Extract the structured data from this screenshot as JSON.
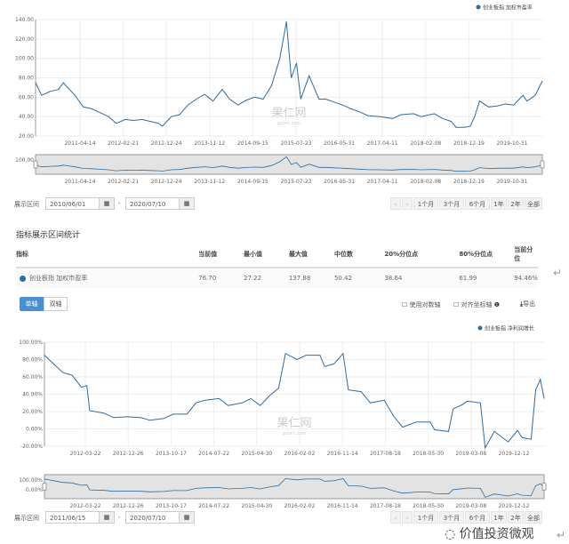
{
  "colors": {
    "line": "#2e6b9e",
    "nav_bg": "#e3e3e3",
    "accent": "#4a8fd0"
  },
  "chart_data": [
    {
      "type": "line",
      "legend": "创业板指 加权市盈率",
      "legend_placement": "top-right",
      "grid": true,
      "ylim": [
        20,
        140
      ],
      "yticks": [
        "20.00",
        "40.00",
        "60.00",
        "80.00",
        "100.00",
        "120.00",
        "140.00"
      ],
      "xlim": [
        "2010-06-01",
        "2020-07-10"
      ],
      "xticks": [
        "2011-04-14",
        "2012-02-21",
        "2012-12-24",
        "2013-11-12",
        "2014-09-15",
        "2015-07-23",
        "2016-05-31",
        "2017-04-11",
        "2018-02-08",
        "2018-12-19",
        "2019-10-31"
      ],
      "navigator_ytick": "100.00",
      "watermark": "果仁网",
      "watermark_sub": "guorn.com",
      "points": [
        [
          "2010-06-01",
          75
        ],
        [
          "2010-07-15",
          62
        ],
        [
          "2010-09-15",
          66
        ],
        [
          "2010-11-15",
          68
        ],
        [
          "2010-12-20",
          75
        ],
        [
          "2011-01-20",
          70
        ],
        [
          "2011-03-15",
          62
        ],
        [
          "2011-05-15",
          50
        ],
        [
          "2011-07-15",
          48
        ],
        [
          "2011-09-15",
          44
        ],
        [
          "2011-11-15",
          40
        ],
        [
          "2012-01-10",
          33
        ],
        [
          "2012-03-15",
          37
        ],
        [
          "2012-05-15",
          36
        ],
        [
          "2012-07-15",
          37
        ],
        [
          "2012-09-15",
          35
        ],
        [
          "2012-11-15",
          33
        ],
        [
          "2012-12-10",
          30
        ],
        [
          "2013-02-15",
          40
        ],
        [
          "2013-04-15",
          42
        ],
        [
          "2013-06-15",
          52
        ],
        [
          "2013-08-15",
          58
        ],
        [
          "2013-10-15",
          63
        ],
        [
          "2013-12-15",
          56
        ],
        [
          "2014-02-20",
          68
        ],
        [
          "2014-04-15",
          58
        ],
        [
          "2014-06-15",
          52
        ],
        [
          "2014-08-15",
          57
        ],
        [
          "2014-10-15",
          60
        ],
        [
          "2014-12-15",
          58
        ],
        [
          "2015-02-15",
          72
        ],
        [
          "2015-04-15",
          100
        ],
        [
          "2015-06-03",
          137.88
        ],
        [
          "2015-07-08",
          80
        ],
        [
          "2015-08-15",
          95
        ],
        [
          "2015-09-15",
          58
        ],
        [
          "2015-11-15",
          82
        ],
        [
          "2016-01-25",
          58
        ],
        [
          "2016-03-15",
          58
        ],
        [
          "2016-05-15",
          55
        ],
        [
          "2016-07-15",
          52
        ],
        [
          "2016-09-15",
          48
        ],
        [
          "2016-11-15",
          45
        ],
        [
          "2017-01-15",
          41
        ],
        [
          "2017-04-15",
          40
        ],
        [
          "2017-07-15",
          38
        ],
        [
          "2017-09-15",
          42
        ],
        [
          "2017-12-15",
          43
        ],
        [
          "2018-02-08",
          40
        ],
        [
          "2018-05-15",
          43
        ],
        [
          "2018-07-15",
          38
        ],
        [
          "2018-09-15",
          35
        ],
        [
          "2018-10-20",
          29
        ],
        [
          "2018-12-20",
          29
        ],
        [
          "2019-02-01",
          30
        ],
        [
          "2019-03-05",
          40
        ],
        [
          "2019-04-10",
          56
        ],
        [
          "2019-06-15",
          50
        ],
        [
          "2019-08-15",
          51
        ],
        [
          "2019-10-15",
          53
        ],
        [
          "2019-12-15",
          52
        ],
        [
          "2020-02-20",
          62
        ],
        [
          "2020-03-20",
          56
        ],
        [
          "2020-05-20",
          62
        ],
        [
          "2020-07-10",
          76.7
        ]
      ]
    },
    {
      "type": "line",
      "legend": "创业板指 净利润增长",
      "legend_placement": "top-right",
      "grid": true,
      "ylim": [
        -20,
        100
      ],
      "yticks": [
        "-20.00%",
        "0.00%",
        "20.00%",
        "40.00%",
        "60.00%",
        "80.00%",
        "100.00%"
      ],
      "xlim": [
        "2011-06-15",
        "2020-07-10"
      ],
      "xticks": [
        "2012-03-22",
        "2012-12-26",
        "2013-10-17",
        "2014-07-22",
        "2015-04-30",
        "2016-02-02",
        "2016-11-14",
        "2017-08-18",
        "2018-05-30",
        "2019-03-08",
        "2019-12-12"
      ],
      "navigator_yticks": [
        "100.00%",
        "0.00%"
      ],
      "watermark": "果仁网",
      "watermark_sub": "guorn.com",
      "points": [
        [
          "2011-06-15",
          85
        ],
        [
          "2011-08-15",
          75
        ],
        [
          "2011-10-15",
          65
        ],
        [
          "2011-12-15",
          62
        ],
        [
          "2012-02-15",
          48
        ],
        [
          "2012-03-22",
          50
        ],
        [
          "2012-04-10",
          21
        ],
        [
          "2012-07-15",
          18
        ],
        [
          "2012-09-15",
          13
        ],
        [
          "2012-12-15",
          14
        ],
        [
          "2013-03-15",
          13
        ],
        [
          "2013-05-15",
          10
        ],
        [
          "2013-08-15",
          12
        ],
        [
          "2013-10-15",
          17
        ],
        [
          "2014-01-15",
          17
        ],
        [
          "2014-03-15",
          30
        ],
        [
          "2014-05-15",
          33
        ],
        [
          "2014-08-15",
          35
        ],
        [
          "2014-10-15",
          27
        ],
        [
          "2015-01-15",
          30
        ],
        [
          "2015-03-15",
          35
        ],
        [
          "2015-05-15",
          27
        ],
        [
          "2015-07-15",
          38
        ],
        [
          "2015-09-15",
          47
        ],
        [
          "2015-10-30",
          87
        ],
        [
          "2016-01-15",
          80
        ],
        [
          "2016-03-15",
          85
        ],
        [
          "2016-06-15",
          85
        ],
        [
          "2016-07-15",
          72
        ],
        [
          "2016-09-15",
          75
        ],
        [
          "2016-11-15",
          87
        ],
        [
          "2016-12-20",
          45
        ],
        [
          "2017-03-15",
          43
        ],
        [
          "2017-05-15",
          30
        ],
        [
          "2017-08-15",
          33
        ],
        [
          "2017-10-15",
          15
        ],
        [
          "2017-12-15",
          2
        ],
        [
          "2018-03-15",
          8
        ],
        [
          "2018-06-15",
          8
        ],
        [
          "2018-07-15",
          -1
        ],
        [
          "2018-10-15",
          -3
        ],
        [
          "2018-11-15",
          23
        ],
        [
          "2019-01-15",
          28
        ],
        [
          "2019-02-15",
          32
        ],
        [
          "2019-05-15",
          30
        ],
        [
          "2019-06-15",
          -22
        ],
        [
          "2019-08-15",
          -3
        ],
        [
          "2019-11-15",
          -15
        ],
        [
          "2020-01-15",
          -2
        ],
        [
          "2020-02-15",
          -10
        ],
        [
          "2020-04-15",
          -12
        ],
        [
          "2020-05-15",
          45
        ],
        [
          "2020-06-15",
          57
        ],
        [
          "2020-07-10",
          35
        ]
      ]
    }
  ],
  "range1": {
    "label": "展示区间",
    "start": "2010/06/01",
    "end": "2020/07/10",
    "sep": "-"
  },
  "range2": {
    "label": "展示区间",
    "start": "2011/06/15",
    "end": "2020/07/10",
    "sep": "-"
  },
  "range_buttons": [
    "1个月",
    "3个月",
    "6个月",
    "1年",
    "2年",
    "全部"
  ],
  "stats": {
    "title": "指标展示区间统计",
    "headers": [
      "指标",
      "当前值",
      "最小值",
      "最大值",
      "中位数",
      "20%分位点",
      "80%分位点",
      "当前分位"
    ],
    "row": [
      "创业板指 加权市盈率",
      "76.70",
      "27.22",
      "137.88",
      "50.42",
      "38.64",
      "61.99",
      "94.46%"
    ]
  },
  "controls": {
    "single_axis": "单轴",
    "dual_axis": "双轴",
    "log_axis": "使用对数轴",
    "align_axis": "对齐坐标轴",
    "export": "导出"
  },
  "logo_text": "价值投资微观"
}
